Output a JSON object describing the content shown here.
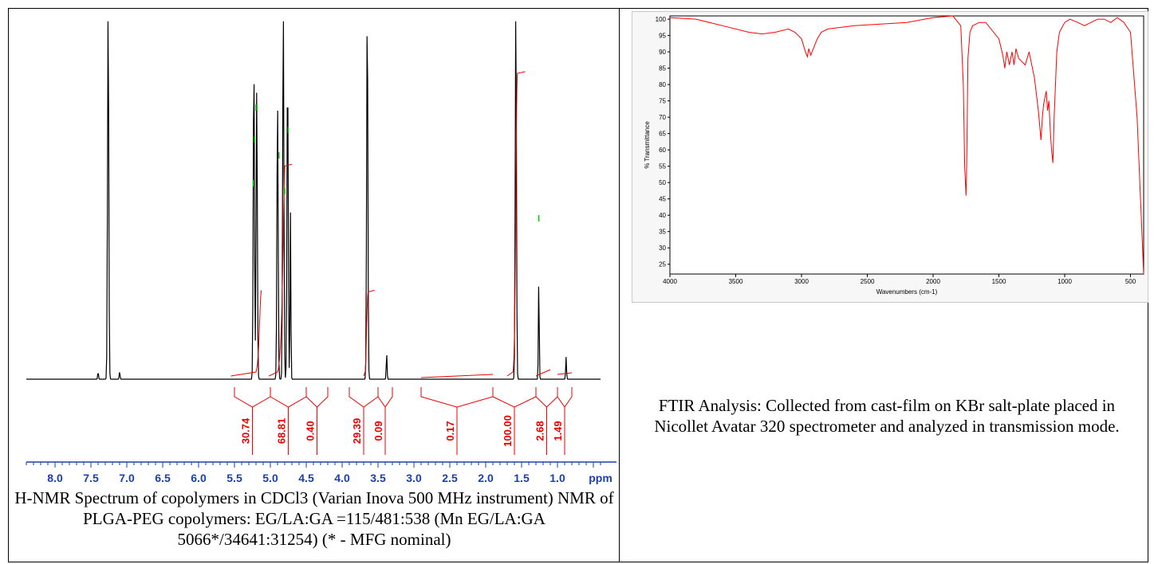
{
  "nmr": {
    "chart_data": {
      "type": "line",
      "title": "",
      "xlabel": "",
      "ylabel": "",
      "x_unit_label": "ppm",
      "xlim": [
        8.4,
        0.4
      ],
      "x_reversed": true,
      "ticks": [
        "8.0",
        "7.5",
        "7.0",
        "6.5",
        "6.0",
        "5.5",
        "5.0",
        "4.5",
        "4.0",
        "3.5",
        "3.0",
        "2.5",
        "2.0",
        "1.5",
        "1.0"
      ],
      "tick_values": [
        8.0,
        7.5,
        7.0,
        6.5,
        6.0,
        5.5,
        5.0,
        4.5,
        4.0,
        3.5,
        3.0,
        2.5,
        2.0,
        1.5,
        1.0
      ],
      "peaks": [
        {
          "ppm": 7.26,
          "height": 1.0
        },
        {
          "ppm": 7.4,
          "height": 0.02
        },
        {
          "ppm": 7.1,
          "height": 0.02
        },
        {
          "ppm": 5.23,
          "height": 0.86
        },
        {
          "ppm": 5.19,
          "height": 0.78
        },
        {
          "ppm": 4.9,
          "height": 0.75
        },
        {
          "ppm": 4.82,
          "height": 1.0
        },
        {
          "ppm": 4.76,
          "height": 0.84
        },
        {
          "ppm": 4.72,
          "height": 0.45
        },
        {
          "ppm": 3.65,
          "height": 1.0
        },
        {
          "ppm": 3.38,
          "height": 0.07
        },
        {
          "ppm": 1.58,
          "height": 1.0
        },
        {
          "ppm": 1.26,
          "height": 0.27
        },
        {
          "ppm": 0.88,
          "height": 0.06
        }
      ],
      "integrals": [
        {
          "label": "30.74",
          "from": 5.5,
          "to": 5.0
        },
        {
          "label": "68.81",
          "from": 5.0,
          "to": 4.5
        },
        {
          "label": "0.40",
          "from": 4.5,
          "to": 4.2
        },
        {
          "label": "29.39",
          "from": 3.9,
          "to": 3.5
        },
        {
          "label": "0.09",
          "from": 3.5,
          "to": 3.3
        },
        {
          "label": "0.17",
          "from": 2.9,
          "to": 1.9
        },
        {
          "label": "100.00",
          "from": 1.9,
          "to": 1.3
        },
        {
          "label": "2.68",
          "from": 1.3,
          "to": 1.0
        },
        {
          "label": "1.49",
          "from": 1.0,
          "to": 0.8
        }
      ]
    },
    "caption": "H-NMR Spectrum of copolymers in CDCl3 (Varian Inova 500 MHz instrument) NMR of PLGA-PEG copolymers: EG/LA:GA =115/481:538 (Mn EG/LA:GA 5066*/34641:31254) (* - MFG nominal)"
  },
  "ftir": {
    "chart_data": {
      "type": "line",
      "title": "",
      "xlabel": "Wavenumbers (cm-1)",
      "ylabel": "% Transmittance",
      "xlim": [
        4000,
        400
      ],
      "x_reversed": true,
      "ylim": [
        22,
        101
      ],
      "x_ticks": [
        4000,
        3500,
        3000,
        2500,
        2000,
        1500,
        1000,
        500
      ],
      "y_ticks": [
        25,
        30,
        35,
        40,
        45,
        50,
        55,
        60,
        65,
        70,
        75,
        80,
        85,
        90,
        95,
        100
      ],
      "series": [
        {
          "color": "#ff0000",
          "x": [
            4000,
            3800,
            3600,
            3400,
            3300,
            3200,
            3100,
            3050,
            3000,
            2970,
            2955,
            2945,
            2930,
            2900,
            2880,
            2850,
            2800,
            2600,
            2400,
            2200,
            2000,
            1850,
            1790,
            1770,
            1760,
            1750,
            1745,
            1735,
            1720,
            1700,
            1650,
            1600,
            1500,
            1470,
            1455,
            1440,
            1420,
            1400,
            1385,
            1370,
            1350,
            1300,
            1270,
            1250,
            1230,
            1200,
            1180,
            1170,
            1160,
            1140,
            1130,
            1120,
            1110,
            1100,
            1090,
            1080,
            1060,
            1040,
            1000,
            960,
            900,
            850,
            800,
            750,
            700,
            650,
            600,
            550,
            500,
            450,
            400
          ],
          "y": [
            100.5,
            100,
            98,
            96,
            95.5,
            96,
            97,
            96,
            94,
            90,
            88.5,
            91,
            89,
            92,
            94,
            96,
            97,
            98,
            98.5,
            99,
            100.5,
            101,
            98,
            80,
            55,
            46,
            55,
            88,
            96,
            98,
            99,
            99,
            94,
            89,
            85,
            90,
            86,
            90,
            86,
            91,
            88,
            86,
            90,
            86,
            82,
            72,
            63,
            70,
            74,
            78,
            72,
            75,
            66,
            60,
            56,
            70,
            90,
            96,
            99,
            100,
            99,
            98,
            99,
            100,
            100,
            99,
            100.5,
            99,
            96,
            70,
            22
          ]
        }
      ]
    },
    "caption": "FTIR Analysis: Collected from cast-film on KBr salt-plate placed in Nicollet Avatar 320 spectrometer and analyzed in transmission mode."
  }
}
